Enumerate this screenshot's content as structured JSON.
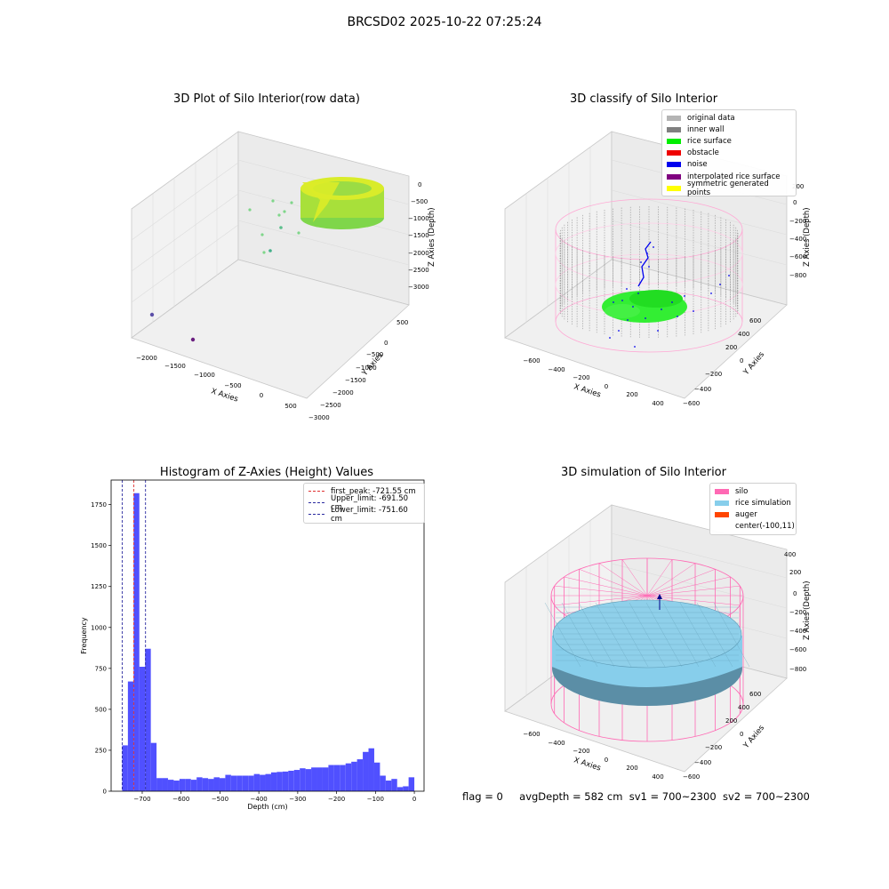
{
  "figure_title": "BRCSD02 2025-10-22 07:25:24",
  "footer": {
    "flag": "flag = 0",
    "avg_depth": "avgDepth = 582 cm",
    "sv1": "sv1 = 700~2300",
    "sv2": "sv2 = 700~2300"
  },
  "colors": {
    "rice_surface": "#00ee00",
    "noise": "#0000ee",
    "inner_wall": "#808080",
    "silo": "#ff69b4",
    "rice_simulation": "#87ceeb",
    "auger": "#ff4500",
    "histogram_bar": "#5050ff",
    "first_peak": "#e03030",
    "limits": "#2a2aa0"
  },
  "chart_data": [
    {
      "type": "scatter",
      "projection": "3d",
      "title": "3D Plot of Silo Interior(row data)",
      "xlabel": "X Axies",
      "ylabel": "Y Axies",
      "zlabel": "Z Axies (Depth)",
      "x_ticks": [
        "−2000",
        "−1500",
        "−1000",
        "−500",
        "0",
        "500"
      ],
      "y_ticks": [
        "500",
        "0",
        "−500",
        "−1000",
        "−1500",
        "−2000",
        "−2500",
        "−3000"
      ],
      "z_ticks": [
        "0",
        "−500",
        "−1000",
        "−1500",
        "−2000",
        "−2500",
        "−3000"
      ],
      "description_points": "dense ring of points near z≈-500 (silo surface) plus scattered outliers",
      "outliers": [
        {
          "x": -2000,
          "y": 500,
          "z": -3000
        },
        {
          "x": -1200,
          "y": 500,
          "z": -3000
        }
      ]
    },
    {
      "type": "scatter",
      "projection": "3d",
      "title": "3D classify of Silo Interior",
      "xlabel": "X Axies",
      "ylabel": "Y Axies",
      "zlabel": "Z Axies (Depth)",
      "x_ticks": [
        "−600",
        "−400",
        "−200",
        "0",
        "200",
        "400"
      ],
      "y_ticks": [
        "600",
        "400",
        "200",
        "0",
        "−200",
        "−400",
        "−600"
      ],
      "z_ticks": [
        "200",
        "0",
        "−200",
        "−400",
        "−600",
        "−800"
      ],
      "legend": [
        {
          "label": "original data",
          "color": "#b4b4b4"
        },
        {
          "label": "inner wall",
          "color": "#808080"
        },
        {
          "label": "rice surface",
          "color": "#00ee00"
        },
        {
          "label": "obstacle",
          "color": "#ee0000"
        },
        {
          "label": "noise",
          "color": "#0000ee"
        },
        {
          "label": "interpolated rice surface",
          "color": "#800080"
        },
        {
          "label": "symmetric generated points",
          "color": "#ffff00"
        }
      ],
      "legend_position": "top-right"
    },
    {
      "type": "bar",
      "title": "Histogram of Z-Axies (Height) Values",
      "xlabel": "Depth (cm)",
      "ylabel": "Frequency",
      "xlim": [
        -751.6,
        0
      ],
      "ylim": [
        0,
        1900
      ],
      "x_ticks": [
        "−700",
        "−600",
        "−500",
        "−400",
        "−300",
        "−200",
        "−100",
        "0"
      ],
      "y_ticks": [
        "0",
        "250",
        "500",
        "750",
        "1000",
        "1250",
        "1500",
        "1750"
      ],
      "bin_width": 10,
      "values": [
        280,
        670,
        1820,
        760,
        870,
        295,
        80,
        80,
        70,
        65,
        75,
        75,
        70,
        85,
        80,
        75,
        85,
        80,
        100,
        95,
        95,
        95,
        95,
        105,
        100,
        105,
        115,
        118,
        120,
        125,
        130,
        140,
        135,
        145,
        145,
        145,
        160,
        160,
        160,
        170,
        180,
        195,
        240,
        262,
        175,
        95,
        65,
        75,
        25,
        30,
        85
      ],
      "vlines": [
        {
          "label": "first_peak: -721.55 cm",
          "x": -721.55,
          "color": "#e03030"
        },
        {
          "label": "Upper_limit: -691.50 cm",
          "x": -691.5,
          "color": "#2a2aa0"
        },
        {
          "label": "Lower_limit: -751.60 cm",
          "x": -751.6,
          "color": "#2a2aa0"
        }
      ],
      "legend_position": "top-right"
    },
    {
      "type": "surface",
      "projection": "3d",
      "title": "3D simulation of Silo Interior",
      "xlabel": "X Axies",
      "ylabel": "Y Axies",
      "zlabel": "Z Axies (Depth)",
      "x_ticks": [
        "−600",
        "−400",
        "−200",
        "0",
        "200",
        "400"
      ],
      "y_ticks": [
        "600",
        "400",
        "200",
        "0",
        "−200",
        "−400",
        "−600"
      ],
      "z_ticks": [
        "400",
        "200",
        "0",
        "−200",
        "−400",
        "−600",
        "−800"
      ],
      "legend": [
        {
          "label": "silo",
          "color": "#ff69b4"
        },
        {
          "label": "rice simulation",
          "color": "#87ceeb"
        },
        {
          "label": "auger",
          "color": "#ff4500"
        },
        {
          "label": "center(-100,11)",
          "color": ""
        }
      ],
      "legend_position": "top-right"
    }
  ]
}
